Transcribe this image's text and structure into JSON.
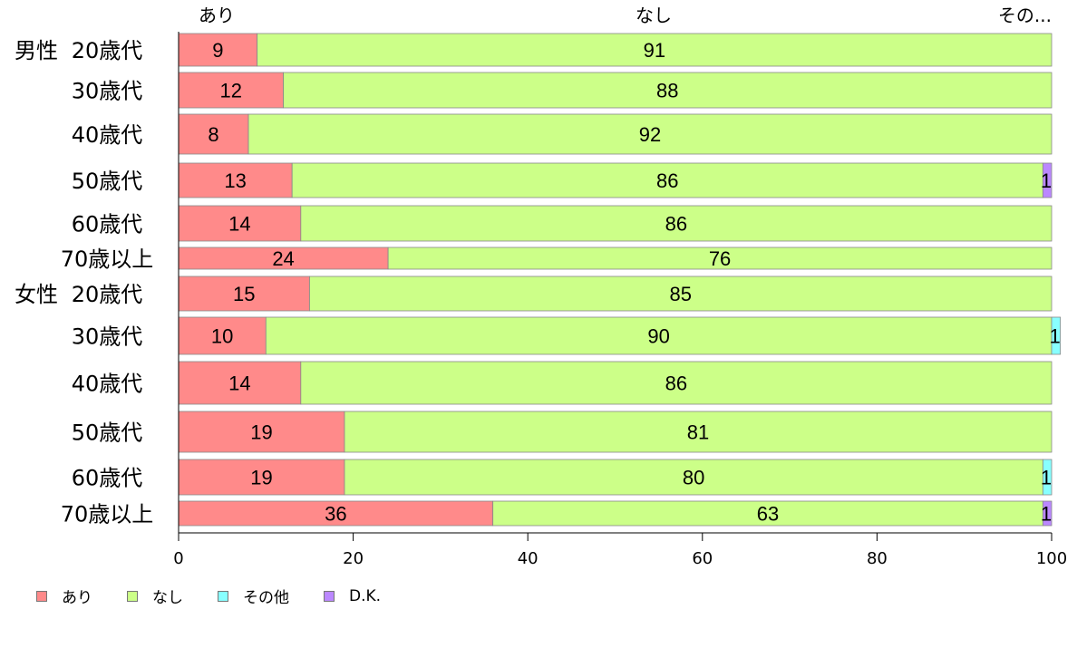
{
  "chart_data": {
    "type": "bar",
    "orientation": "horizontal",
    "stacked": true,
    "group_labels": [
      "男性",
      "女性"
    ],
    "categories": [
      "20歳代",
      "30歳代",
      "40歳代",
      "50歳代",
      "60歳代",
      "70歳以上",
      "20歳代",
      "30歳代",
      "40歳代",
      "50歳代",
      "60歳代",
      "70歳以上"
    ],
    "category_group": [
      0,
      0,
      0,
      0,
      0,
      0,
      1,
      1,
      1,
      1,
      1,
      1
    ],
    "series": [
      {
        "name": "あり",
        "color": "#ff8a8a",
        "values": [
          9,
          12,
          8,
          13,
          14,
          24,
          15,
          10,
          14,
          19,
          19,
          36
        ]
      },
      {
        "name": "なし",
        "color": "#ccff88",
        "values": [
          91,
          88,
          92,
          86,
          86,
          76,
          85,
          90,
          86,
          81,
          80,
          63
        ]
      },
      {
        "name": "その他",
        "color": "#88ffff",
        "values": [
          0,
          0,
          0,
          0,
          0,
          0,
          0,
          1,
          0,
          0,
          1,
          0
        ]
      },
      {
        "name": "D.K.",
        "color": "#bb88ff",
        "values": [
          0,
          0,
          0,
          1,
          0,
          0,
          0,
          0,
          0,
          0,
          0,
          1
        ]
      }
    ],
    "top_labels": [
      "あり",
      "なし",
      "その..."
    ],
    "xlim": [
      0,
      100
    ],
    "xticks": [
      0,
      20,
      40,
      60,
      80,
      100
    ],
    "legend_position": "bottom-left",
    "grid": false
  }
}
